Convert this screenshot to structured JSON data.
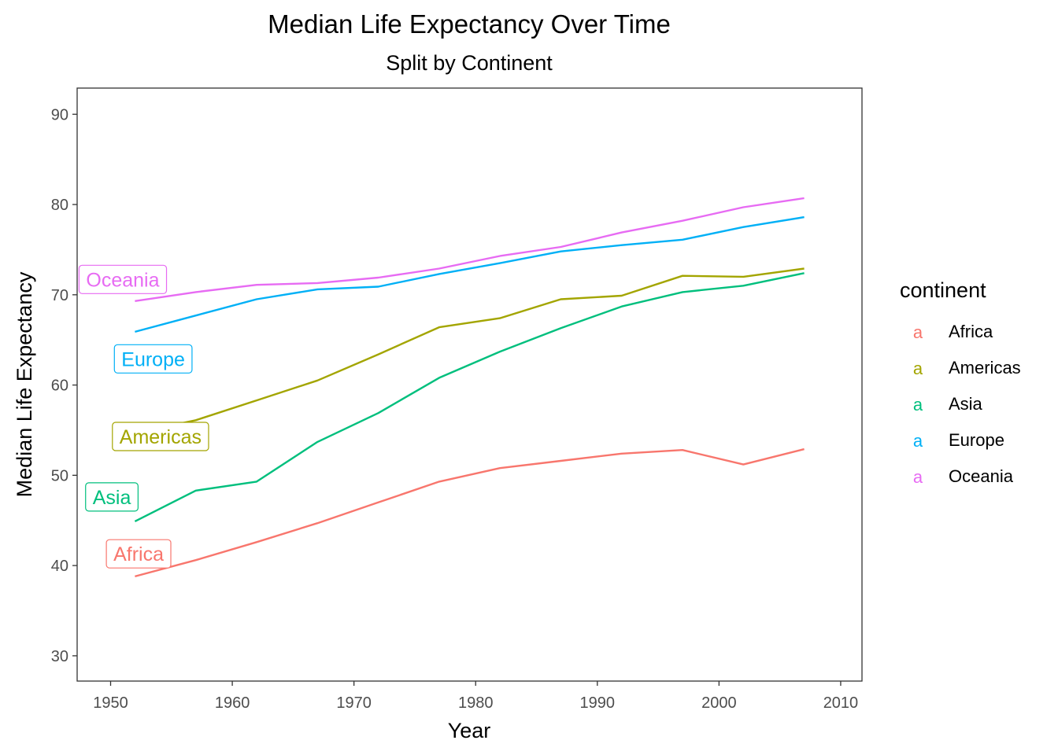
{
  "chart_data": {
    "type": "line",
    "title": "Median Life Expectancy Over Time",
    "subtitle": "Split by Continent",
    "xlabel": "Year",
    "ylabel": "Median Life Expectancy",
    "xlim": [
      1947.25,
      2011.75
    ],
    "ylim": [
      27.2,
      92.9
    ],
    "x_ticks": [
      1950,
      1960,
      1970,
      1980,
      1990,
      2000,
      2010
    ],
    "y_ticks": [
      30,
      40,
      50,
      60,
      70,
      80,
      90
    ],
    "grid": false,
    "legend": {
      "title": "continent",
      "position": "right",
      "key_glyph": "a"
    },
    "x": [
      1952,
      1957,
      1962,
      1967,
      1972,
      1977,
      1982,
      1987,
      1992,
      1997,
      2002,
      2007
    ],
    "series": [
      {
        "name": "Africa",
        "color": "#F8766D",
        "values": [
          38.8,
          40.6,
          42.6,
          44.7,
          47.0,
          49.3,
          50.8,
          51.6,
          52.4,
          52.8,
          51.2,
          52.9
        ],
        "label": {
          "text": "Africa",
          "x": 1952.3,
          "y": 41.3
        }
      },
      {
        "name": "Americas",
        "color": "#A3A500",
        "values": [
          54.7,
          56.1,
          58.3,
          60.5,
          63.4,
          66.4,
          67.4,
          69.5,
          69.9,
          72.1,
          72.0,
          72.9
        ],
        "label": {
          "text": "Americas",
          "x": 1954.1,
          "y": 54.3
        }
      },
      {
        "name": "Asia",
        "color": "#00BF7D",
        "values": [
          44.9,
          48.3,
          49.3,
          53.7,
          56.9,
          60.8,
          63.7,
          66.3,
          68.7,
          70.3,
          71.0,
          72.4
        ],
        "label": {
          "text": "Asia",
          "x": 1950.1,
          "y": 47.6
        }
      },
      {
        "name": "Europe",
        "color": "#00B0F6",
        "values": [
          65.9,
          67.7,
          69.5,
          70.6,
          70.9,
          72.3,
          73.5,
          74.8,
          75.5,
          76.1,
          77.5,
          78.6
        ],
        "label": {
          "text": "Europe",
          "x": 1953.5,
          "y": 62.9
        }
      },
      {
        "name": "Oceania",
        "color": "#E76BF3",
        "values": [
          69.3,
          70.3,
          71.1,
          71.3,
          71.9,
          72.9,
          74.3,
          75.3,
          76.9,
          78.2,
          79.7,
          80.7
        ],
        "label": {
          "text": "Oceania",
          "x": 1951.0,
          "y": 71.7
        }
      }
    ]
  }
}
